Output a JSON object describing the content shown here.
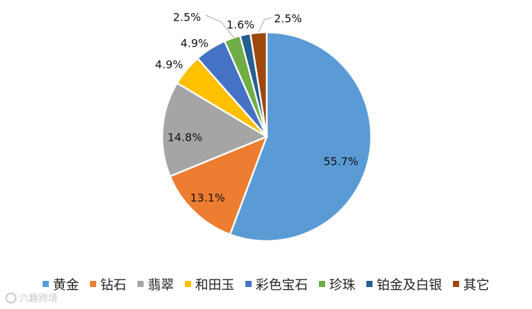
{
  "chart_data": {
    "type": "pie",
    "categories": [
      "黄金",
      "钻石",
      "翡翠",
      "和田玉",
      "彩色宝石",
      "珍珠",
      "铂金及白银",
      "其它"
    ],
    "values": [
      55.7,
      13.1,
      14.8,
      4.9,
      4.9,
      2.5,
      1.6,
      2.5
    ],
    "labels": [
      "55.7%",
      "13.1%",
      "14.8%",
      "4.9%",
      "4.9%",
      "2.5%",
      "1.6%",
      "2.5%"
    ],
    "colors": [
      "#5B9BD5",
      "#ED7D31",
      "#A5A5A5",
      "#FFC000",
      "#4472C4",
      "#70AD47",
      "#255E91",
      "#9E480E"
    ],
    "title": "",
    "legend_position": "bottom",
    "start_angle": "12 o'clock",
    "direction": "clockwise"
  },
  "watermark": {
    "text": "六趣跨境",
    "icon": "logo-icon"
  }
}
